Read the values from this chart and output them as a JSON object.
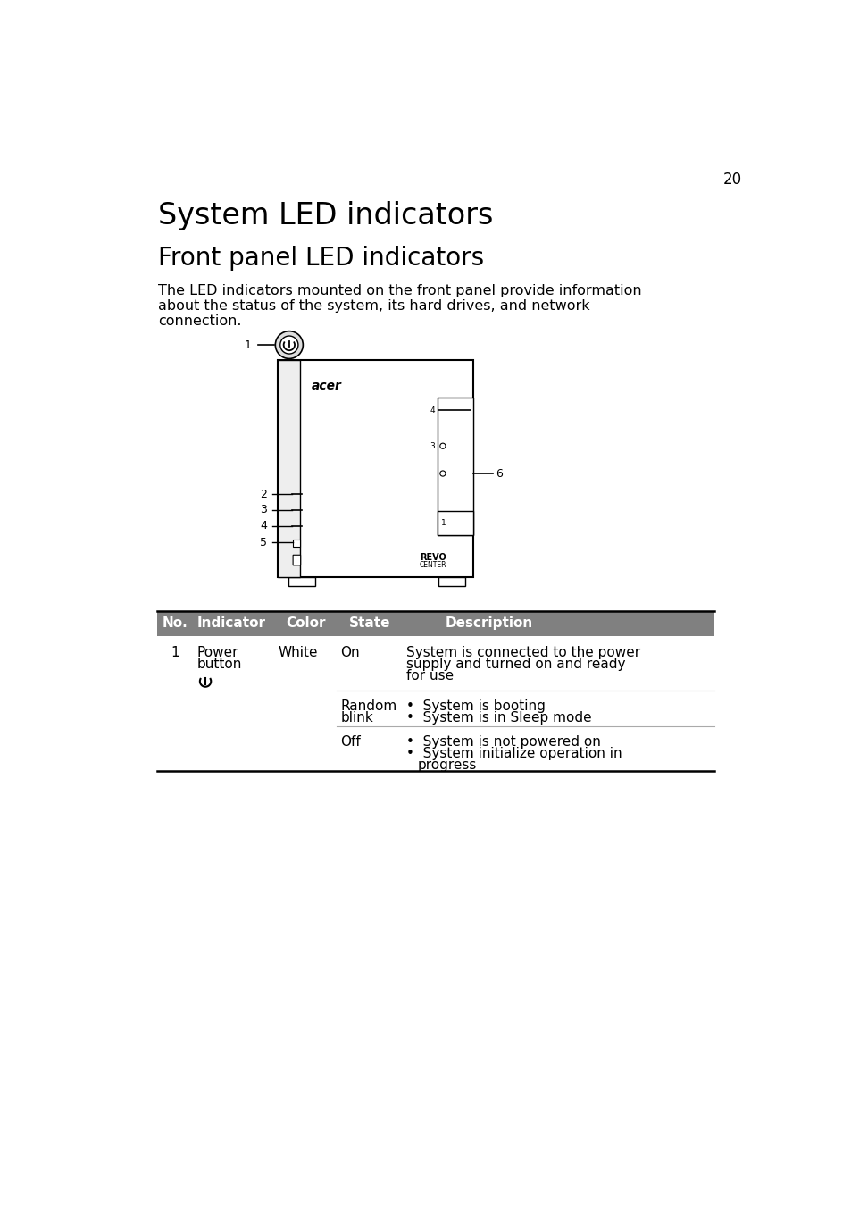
{
  "page_number": "20",
  "title": "System LED indicators",
  "subtitle": "Front panel LED indicators",
  "body_text_1": "The LED indicators mounted on the front panel provide information",
  "body_text_2": "about the status of the system, its hard drives, and network",
  "body_text_3": "connection.",
  "table_header": [
    "No.",
    "Indicator",
    "Color",
    "State",
    "Description"
  ],
  "table_header_bg": "#808080",
  "bg_color": "#ffffff",
  "text_color": "#000000",
  "font_size_title": 24,
  "font_size_subtitle": 20,
  "font_size_body": 11.5,
  "font_size_table_header": 11,
  "font_size_table_body": 11
}
